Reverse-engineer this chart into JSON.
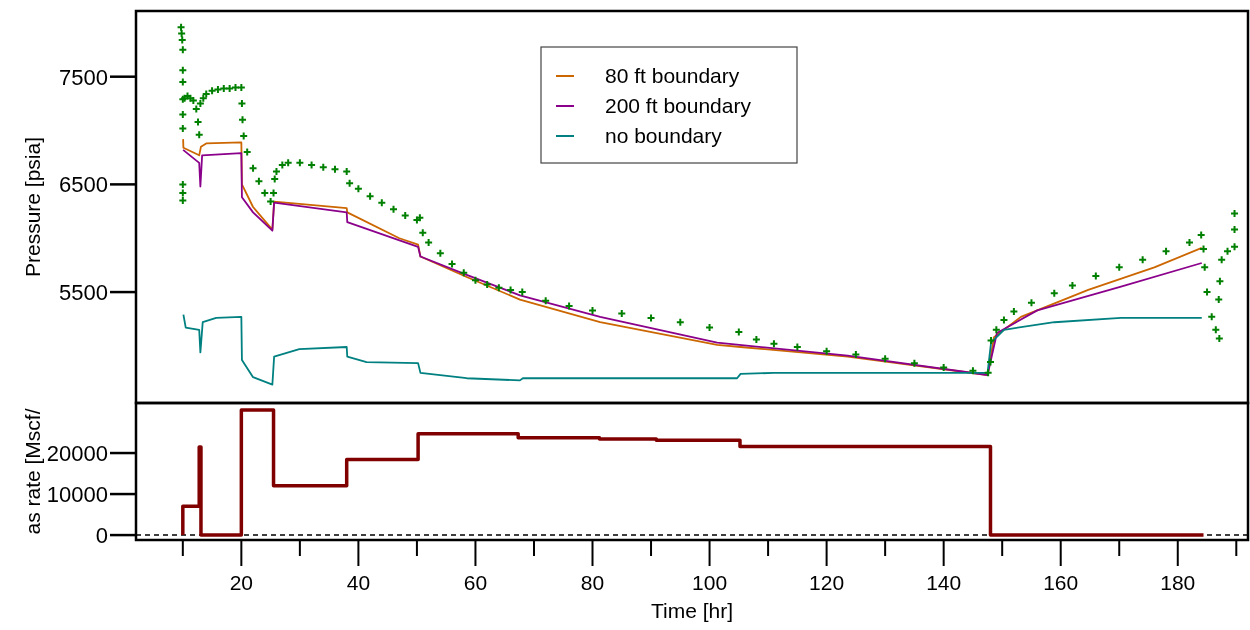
{
  "chart_data": [
    {
      "type": "line",
      "ylabel": "Pressure [psia]",
      "xlim": [
        2,
        192
      ],
      "ylim": [
        4470,
        8110
      ],
      "yticks": [
        5500,
        6500,
        7500
      ],
      "xticks": [
        20,
        40,
        60,
        80,
        100,
        120,
        140,
        160,
        180
      ],
      "tick_labels": "y",
      "legend": "top",
      "grid": false,
      "series": [
        {
          "name": "80 ft boundary",
          "color": "#cc6600",
          "x": [
            10.05,
            10.1,
            12.8,
            13.1,
            14,
            20,
            20.1,
            22,
            25.3,
            25.6,
            38,
            38.1,
            47,
            50.2,
            50.6,
            58.5,
            67.6,
            81.3,
            101.3,
            105.3,
            123.6,
            147.5,
            148.6,
            153.2,
            164.7,
            176,
            184.1
          ],
          "values": [
            6920,
            6840,
            6770,
            6850,
            6880,
            6890,
            6500,
            6290,
            6080,
            6340,
            6280,
            6240,
            6000,
            5940,
            5830,
            5640,
            5430,
            5220,
            5010,
            4990,
            4900,
            4730,
            5080,
            5270,
            5520,
            5730,
            5910
          ]
        },
        {
          "name": "200 ft boundary",
          "color": "#8b008b",
          "x": [
            10.05,
            12.8,
            13,
            13.3,
            20,
            20.1,
            22,
            25.3,
            25.6,
            38,
            38.1,
            50.2,
            50.6,
            58.5,
            67.6,
            81.3,
            101.3,
            123.6,
            147.5,
            149.1,
            156,
            170.3,
            184.1
          ],
          "values": [
            6820,
            6700,
            6480,
            6770,
            6790,
            6380,
            6240,
            6070,
            6330,
            6240,
            6150,
            5920,
            5830,
            5660,
            5470,
            5270,
            5030,
            4910,
            4730,
            5120,
            5330,
            5550,
            5770
          ]
        },
        {
          "name": "no boundary",
          "color": "#008080",
          "x": [
            10.1,
            10.5,
            12.8,
            13,
            13.4,
            15.7,
            20,
            20.1,
            22,
            25.3,
            25.6,
            29.9,
            38,
            38.1,
            41.4,
            50.2,
            50.6,
            58.5,
            67.6,
            68.1,
            104.7,
            105.3,
            111,
            147.5,
            148.1,
            150.3,
            158.9,
            170.3,
            184.1
          ],
          "values": [
            5290,
            5170,
            5150,
            4940,
            5220,
            5260,
            5270,
            4870,
            4710,
            4640,
            4900,
            4970,
            4990,
            4900,
            4850,
            4840,
            4750,
            4700,
            4680,
            4700,
            4700,
            4740,
            4750,
            4750,
            5030,
            5150,
            5220,
            5260,
            5260
          ]
        },
        {
          "type": "scatter",
          "marker": "cross",
          "color": "#008000",
          "x": [
            9.7,
            9.8,
            9.9,
            10,
            10,
            10,
            10,
            10,
            10,
            10,
            10,
            10,
            10.3,
            10.8,
            11.3,
            11.8,
            12.3,
            12.6,
            12.8,
            13,
            13.5,
            14,
            15,
            16,
            17,
            18,
            19,
            20,
            20.1,
            20.2,
            20.4,
            21,
            22,
            23,
            24,
            25,
            25.5,
            25.7,
            26,
            27,
            28,
            30,
            32,
            34,
            36,
            38,
            38.5,
            40,
            42,
            44,
            46,
            48,
            50,
            50.5,
            51,
            52,
            54,
            56,
            58,
            60,
            62,
            64,
            66,
            68,
            72,
            76,
            80,
            85,
            90,
            95,
            100,
            105,
            108,
            111,
            115,
            120,
            125,
            130,
            135,
            140,
            145,
            147.6,
            148,
            148.1,
            149,
            150.3,
            152,
            155,
            158.9,
            162,
            166,
            170,
            174,
            178,
            182,
            184,
            184.4,
            184.6,
            185,
            185.8,
            186.5,
            187.1,
            187,
            187.2,
            187.5,
            188.5,
            189.7,
            189.7,
            189.7
          ],
          "values": [
            7960,
            7900,
            7840,
            7750,
            7560,
            7450,
            7290,
            7150,
            7020,
            6500,
            6420,
            6350,
            7300,
            7320,
            7300,
            7280,
            7200,
            7080,
            6960,
            7250,
            7300,
            7340,
            7370,
            7380,
            7390,
            7390,
            7400,
            7400,
            7250,
            7100,
            6950,
            6800,
            6650,
            6530,
            6420,
            6340,
            6420,
            6550,
            6620,
            6680,
            6700,
            6700,
            6680,
            6660,
            6640,
            6620,
            6510,
            6460,
            6390,
            6330,
            6270,
            6210,
            6170,
            6190,
            6050,
            5960,
            5860,
            5760,
            5680,
            5610,
            5570,
            5540,
            5520,
            5500,
            5420,
            5370,
            5330,
            5300,
            5260,
            5220,
            5170,
            5130,
            5060,
            5020,
            4990,
            4950,
            4920,
            4880,
            4840,
            4800,
            4770,
            4750,
            4850,
            5050,
            5150,
            5240,
            5320,
            5400,
            5490,
            5560,
            5650,
            5730,
            5800,
            5880,
            5960,
            6030,
            5900,
            5730,
            5500,
            5270,
            5150,
            5070,
            5430,
            5600,
            5800,
            5880,
            5920,
            6080,
            6230
          ]
        }
      ]
    },
    {
      "type": "step",
      "ylabel": "as rate [Mscf/",
      "xlabel": "Time [hr]",
      "xlim": [
        2,
        192
      ],
      "ylim": [
        -1200,
        32200
      ],
      "yticks": [
        0,
        10000,
        20000
      ],
      "xticks": [
        {
          "value": 10,
          "label": null
        },
        20,
        {
          "value": 30,
          "label": null
        },
        40,
        {
          "value": 50,
          "label": null
        },
        60,
        {
          "value": 70,
          "label": null
        },
        80,
        {
          "value": 90,
          "label": null
        },
        100,
        {
          "value": 110,
          "label": null
        },
        120,
        {
          "value": 130,
          "label": null
        },
        140,
        {
          "value": 150,
          "label": null
        },
        160,
        {
          "value": 170,
          "label": null
        },
        180,
        {
          "value": 190,
          "label": null
        }
      ],
      "grid": false,
      "ref_lines": [
        {
          "axis": "y",
          "value": 0,
          "color": "#000000",
          "line_style": "dashed"
        }
      ],
      "series": [
        {
          "color": "#800000",
          "x": [
            10,
            10,
            12.8,
            13.1,
            20,
            25.5,
            38,
            50.2,
            67.3,
            81.2,
            90.9,
            105.2,
            148,
            184.4
          ],
          "values": [
            0,
            7000,
            21500,
            0,
            30500,
            12000,
            18400,
            24700,
            23700,
            23400,
            23100,
            21600,
            0,
            0
          ]
        }
      ]
    }
  ]
}
